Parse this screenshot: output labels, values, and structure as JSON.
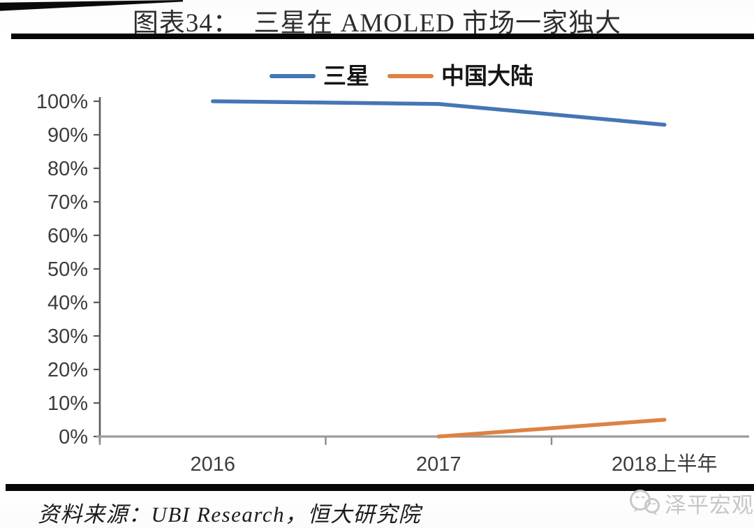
{
  "header": {
    "title": "图表34：  三星在 AMOLED 市场一家独大"
  },
  "legend": {
    "items": [
      {
        "label": "三星",
        "color": "#4576b5"
      },
      {
        "label": "中国大陆",
        "color": "#dd8243"
      }
    ]
  },
  "chart_data": {
    "type": "line",
    "title": "图表34：三星在 AMOLED 市场一家独大",
    "categories": [
      "2016",
      "2017",
      "2018上半年"
    ],
    "series": [
      {
        "name": "三星",
        "color": "#4576b5",
        "values": [
          100,
          99.2,
          93
        ]
      },
      {
        "name": "中国大陆",
        "color": "#dd8243",
        "values": [
          null,
          0,
          5
        ]
      }
    ],
    "xlabel": "",
    "ylabel": "",
    "ylim": [
      0,
      100
    ],
    "ytick_step": 10,
    "ytick_suffix": "%",
    "grid": false,
    "legend_position": "top"
  },
  "footer": {
    "source": "资料来源：UBI Research，恒大研究院",
    "watermark": "泽平宏观"
  }
}
